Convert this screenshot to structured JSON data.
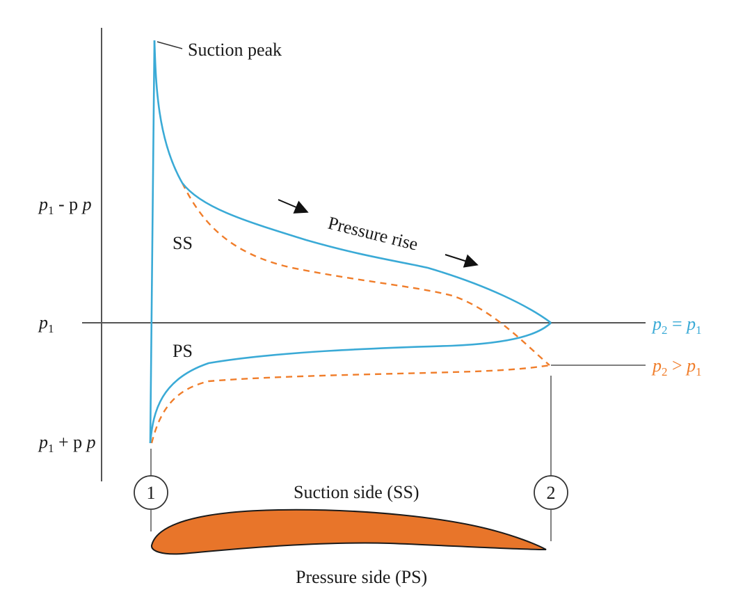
{
  "labels": {
    "suction_peak": "Suction peak",
    "pressure_rise": "Pressure rise",
    "ss": "SS",
    "ps": "PS",
    "suction_side": "Suction side (SS)",
    "pressure_side": "Pressure side (PS)",
    "station_1": "1",
    "station_2": "2"
  },
  "y_axis": {
    "top": {
      "p": "p",
      "sub": "1",
      "rest": " - p"
    },
    "mid": {
      "p": "p",
      "sub": "1"
    },
    "bottom": {
      "p": "p",
      "sub": "1",
      "rest": " + p"
    }
  },
  "legend": {
    "equal": {
      "p": "p",
      "sub_a": "2",
      "op": " = ",
      "p2": "p",
      "sub_b": "1",
      "color": "#3aaad6"
    },
    "greater": {
      "p": "p",
      "sub_a": "2",
      "op": " > ",
      "p2": "p",
      "sub_b": "1",
      "color": "#f07d2a"
    }
  },
  "colors": {
    "blue_curve": "#3aaad6",
    "orange_curve": "#f07d2a",
    "airfoil_fill": "#e8752a",
    "axis": "#555555"
  }
}
